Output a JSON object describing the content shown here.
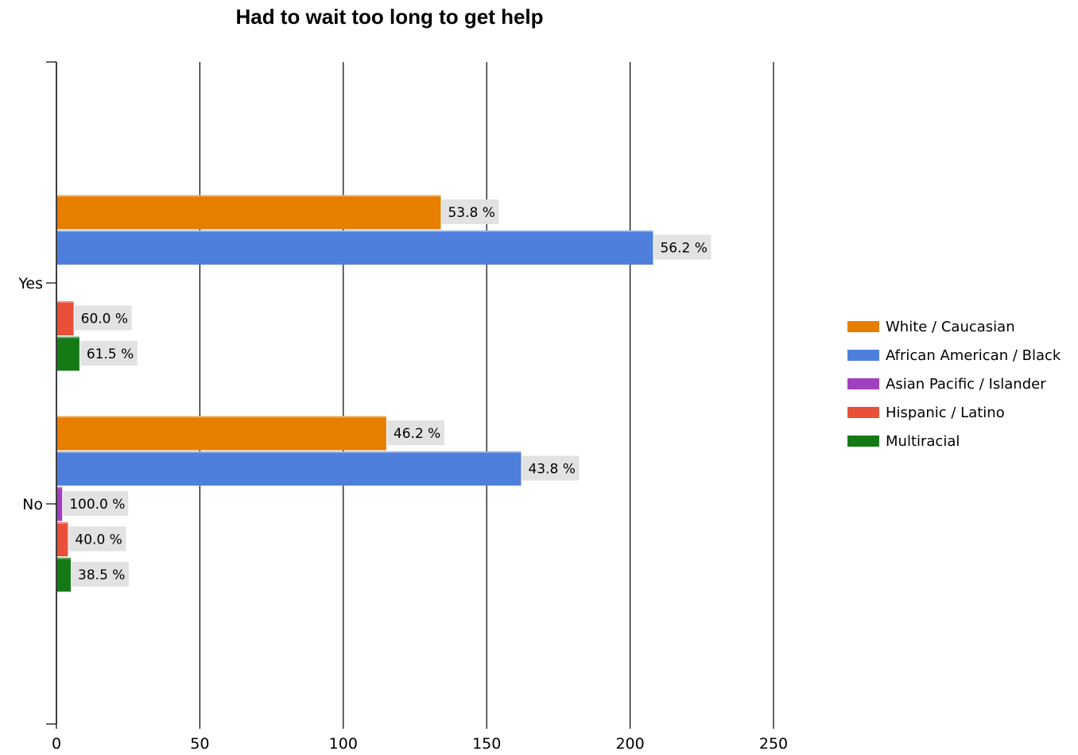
{
  "chart_data": {
    "type": "bar",
    "orientation": "horizontal",
    "title": "Had to wait too long to get help",
    "categories": [
      "Yes",
      "No"
    ],
    "series": [
      {
        "name": "White / Caucasian",
        "color": "#E67E00",
        "values": [
          134,
          115
        ],
        "labels": [
          "53.8 %",
          "46.2 %"
        ]
      },
      {
        "name": "African American / Black",
        "color": "#4F7FDC",
        "values": [
          208,
          162
        ],
        "labels": [
          "56.2 %",
          "43.8 %"
        ]
      },
      {
        "name": "Asian Pacific / Islander",
        "color": "#A040C0",
        "values": [
          0,
          2
        ],
        "labels": [
          null,
          "100.0 %"
        ]
      },
      {
        "name": "Hispanic / Latino",
        "color": "#E8503A",
        "values": [
          6,
          4
        ],
        "labels": [
          "60.0 %",
          "40.0 %"
        ]
      },
      {
        "name": "Multiracial",
        "color": "#157A15",
        "values": [
          8,
          5
        ],
        "labels": [
          "61.5 %",
          "38.5 %"
        ]
      }
    ],
    "xlim": [
      0,
      250
    ],
    "x_ticks": [
      0,
      50,
      100,
      150,
      200,
      250
    ],
    "grid": "vertical",
    "legend_position": "right"
  }
}
